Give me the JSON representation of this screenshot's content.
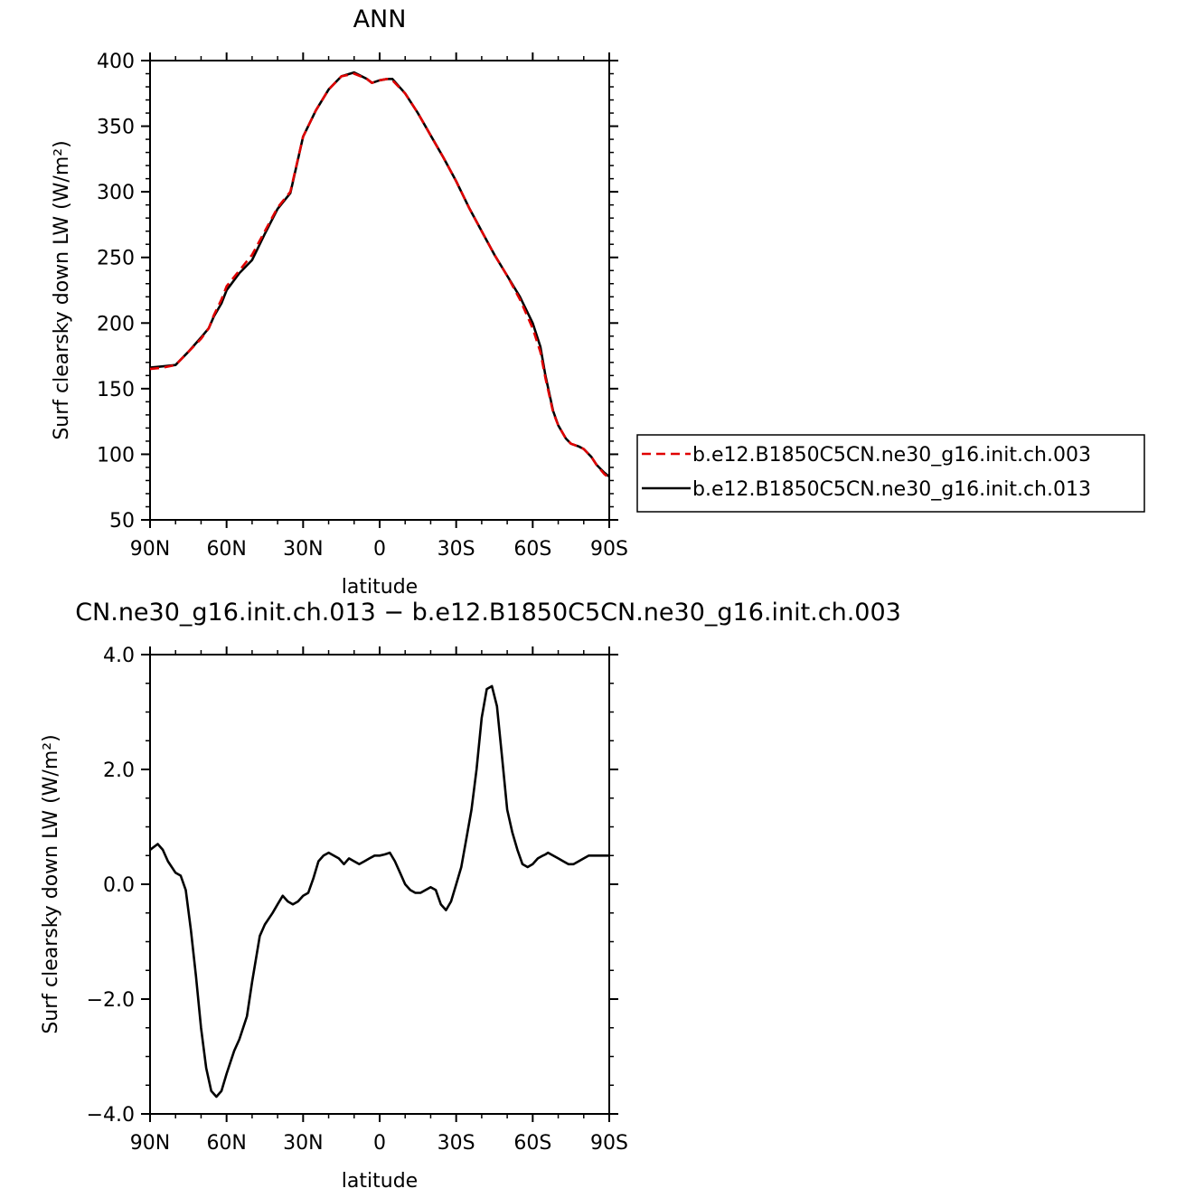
{
  "chart_data": [
    {
      "type": "line",
      "title": "ANN",
      "xlabel": "latitude",
      "ylabel": "Surf clearsky down LW (W/m²)",
      "xlim": [
        90,
        -90
      ],
      "ylim": [
        50,
        400
      ],
      "x_ticks": [
        {
          "value": 90,
          "label": "90N"
        },
        {
          "value": 60,
          "label": "60N"
        },
        {
          "value": 30,
          "label": "30N"
        },
        {
          "value": 0,
          "label": "0"
        },
        {
          "value": -30,
          "label": "30S"
        },
        {
          "value": -60,
          "label": "60S"
        },
        {
          "value": -90,
          "label": "90S"
        }
      ],
      "y_ticks": [
        {
          "value": 400,
          "label": "400"
        },
        {
          "value": 350,
          "label": "350"
        },
        {
          "value": 300,
          "label": "300"
        },
        {
          "value": 250,
          "label": "250"
        },
        {
          "value": 200,
          "label": "200"
        },
        {
          "value": 150,
          "label": "150"
        },
        {
          "value": 100,
          "label": "100"
        },
        {
          "value": 50,
          "label": "50"
        }
      ],
      "legend": {
        "placement": "right",
        "entries": [
          {
            "name": "b.e12.B1850C5CN.ne30_g16.init.ch.003",
            "color": "#e00000",
            "dash": true
          },
          {
            "name": "b.e12.B1850C5CN.ne30_g16.init.ch.013",
            "color": "#000000",
            "dash": false
          }
        ]
      },
      "series": [
        {
          "name": "b.e12.B1850C5CN.ne30_g16.init.ch.003",
          "color": "#e00000",
          "dashed": true,
          "x": [
            90,
            85,
            80,
            75,
            70,
            67,
            65,
            62,
            60,
            55,
            50,
            45,
            40,
            35,
            30,
            25,
            20,
            15,
            10,
            5,
            3,
            0,
            -3,
            -5,
            -10,
            -15,
            -20,
            -25,
            -30,
            -35,
            -40,
            -45,
            -50,
            -55,
            -60,
            -63,
            -65,
            -68,
            -70,
            -73,
            -75,
            -78,
            -80,
            -83,
            -85,
            -88,
            -90
          ],
          "y": [
            165,
            166,
            168,
            178,
            188,
            196,
            206,
            218,
            228,
            240,
            252,
            270,
            288,
            300,
            342,
            362,
            378,
            388,
            390,
            386,
            383,
            385,
            386,
            385,
            375,
            360,
            343,
            326,
            308,
            288,
            270,
            252,
            236,
            218,
            196,
            178,
            158,
            132,
            122,
            112,
            108,
            106,
            104,
            98,
            92,
            85,
            82
          ]
        },
        {
          "name": "b.e12.B1850C5CN.ne30_g16.init.ch.013",
          "color": "#000000",
          "dashed": false,
          "x": [
            90,
            85,
            80,
            75,
            70,
            67,
            65,
            62,
            60,
            55,
            50,
            45,
            40,
            35,
            30,
            25,
            20,
            15,
            10,
            5,
            3,
            0,
            -3,
            -5,
            -10,
            -15,
            -20,
            -25,
            -30,
            -35,
            -40,
            -45,
            -50,
            -55,
            -60,
            -63,
            -65,
            -68,
            -70,
            -73,
            -75,
            -78,
            -80,
            -83,
            -85,
            -88,
            -90
          ],
          "y": [
            166,
            167,
            168,
            178,
            189,
            196,
            205,
            215,
            225,
            238,
            248,
            268,
            287,
            299,
            342,
            362,
            378,
            388,
            391,
            386,
            383,
            385,
            386,
            386,
            375,
            360,
            343,
            326,
            308,
            288,
            270,
            252,
            236,
            220,
            200,
            182,
            160,
            133,
            122,
            112,
            108,
            106,
            104,
            98,
            92,
            86,
            83
          ]
        }
      ]
    },
    {
      "type": "line",
      "title": "CN.ne30_g16.init.ch.013 − b.e12.B1850C5CN.ne30_g16.init.ch.003",
      "xlabel": "latitude",
      "ylabel": "Surf clearsky down LW (W/m²)",
      "xlim": [
        90,
        -90
      ],
      "ylim": [
        -4.0,
        4.0
      ],
      "x_ticks": [
        {
          "value": 90,
          "label": "90N"
        },
        {
          "value": 60,
          "label": "60N"
        },
        {
          "value": 30,
          "label": "30N"
        },
        {
          "value": 0,
          "label": "0"
        },
        {
          "value": -30,
          "label": "30S"
        },
        {
          "value": -60,
          "label": "60S"
        },
        {
          "value": -90,
          "label": "90S"
        }
      ],
      "y_ticks": [
        {
          "value": 4.0,
          "label": "4.0"
        },
        {
          "value": 2.0,
          "label": "2.0"
        },
        {
          "value": 0.0,
          "label": "0.0"
        },
        {
          "value": -2.0,
          "label": "−2.0"
        },
        {
          "value": -4.0,
          "label": "−4.0"
        }
      ],
      "series": [
        {
          "color": "#000000",
          "dashed": false,
          "x": [
            90,
            87,
            85,
            83,
            80,
            78,
            76,
            74,
            72,
            70,
            68,
            66,
            64,
            62,
            60,
            57,
            55,
            52,
            50,
            47,
            45,
            42,
            40,
            38,
            36,
            34,
            32,
            30,
            28,
            26,
            24,
            22,
            20,
            18,
            16,
            14,
            12,
            10,
            8,
            6,
            4,
            2,
            0,
            -2,
            -4,
            -6,
            -8,
            -10,
            -12,
            -14,
            -16,
            -18,
            -20,
            -22,
            -24,
            -26,
            -28,
            -30,
            -32,
            -34,
            -36,
            -38,
            -40,
            -42,
            -44,
            -46,
            -48,
            -50,
            -52,
            -54,
            -56,
            -58,
            -60,
            -62,
            -64,
            -65,
            -66,
            -68,
            -70,
            -72,
            -74,
            -76,
            -78,
            -80,
            -82,
            -84,
            -86,
            -88,
            -90
          ],
          "y": [
            0.6,
            0.7,
            0.6,
            0.4,
            0.2,
            0.15,
            -0.1,
            -0.8,
            -1.6,
            -2.5,
            -3.2,
            -3.6,
            -3.7,
            -3.6,
            -3.3,
            -2.9,
            -2.7,
            -2.3,
            -1.7,
            -0.9,
            -0.7,
            -0.5,
            -0.35,
            -0.2,
            -0.3,
            -0.35,
            -0.3,
            -0.2,
            -0.15,
            0.1,
            0.4,
            0.5,
            0.55,
            0.5,
            0.45,
            0.35,
            0.45,
            0.4,
            0.35,
            0.4,
            0.45,
            0.5,
            0.5,
            0.52,
            0.55,
            0.4,
            0.2,
            0.0,
            -0.1,
            -0.15,
            -0.15,
            -0.1,
            -0.05,
            -0.1,
            -0.35,
            -0.45,
            -0.3,
            0.0,
            0.3,
            0.8,
            1.3,
            2.0,
            2.9,
            3.4,
            3.45,
            3.1,
            2.2,
            1.3,
            0.9,
            0.6,
            0.35,
            0.3,
            0.35,
            0.45,
            0.5,
            0.52,
            0.55,
            0.5,
            0.45,
            0.4,
            0.35,
            0.35,
            0.4,
            0.45,
            0.5,
            0.5,
            0.5,
            0.5,
            0.5
          ]
        }
      ]
    }
  ]
}
